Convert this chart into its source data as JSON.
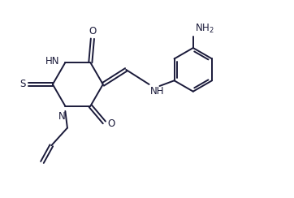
{
  "background_color": "#ffffff",
  "line_color": "#1a1a3a",
  "line_width": 1.4,
  "font_size": 8.5,
  "figsize": [
    3.62,
    2.44
  ],
  "dpi": 100,
  "xlim": [
    0.2,
    6.8
  ],
  "ylim": [
    0.5,
    5.2
  ]
}
